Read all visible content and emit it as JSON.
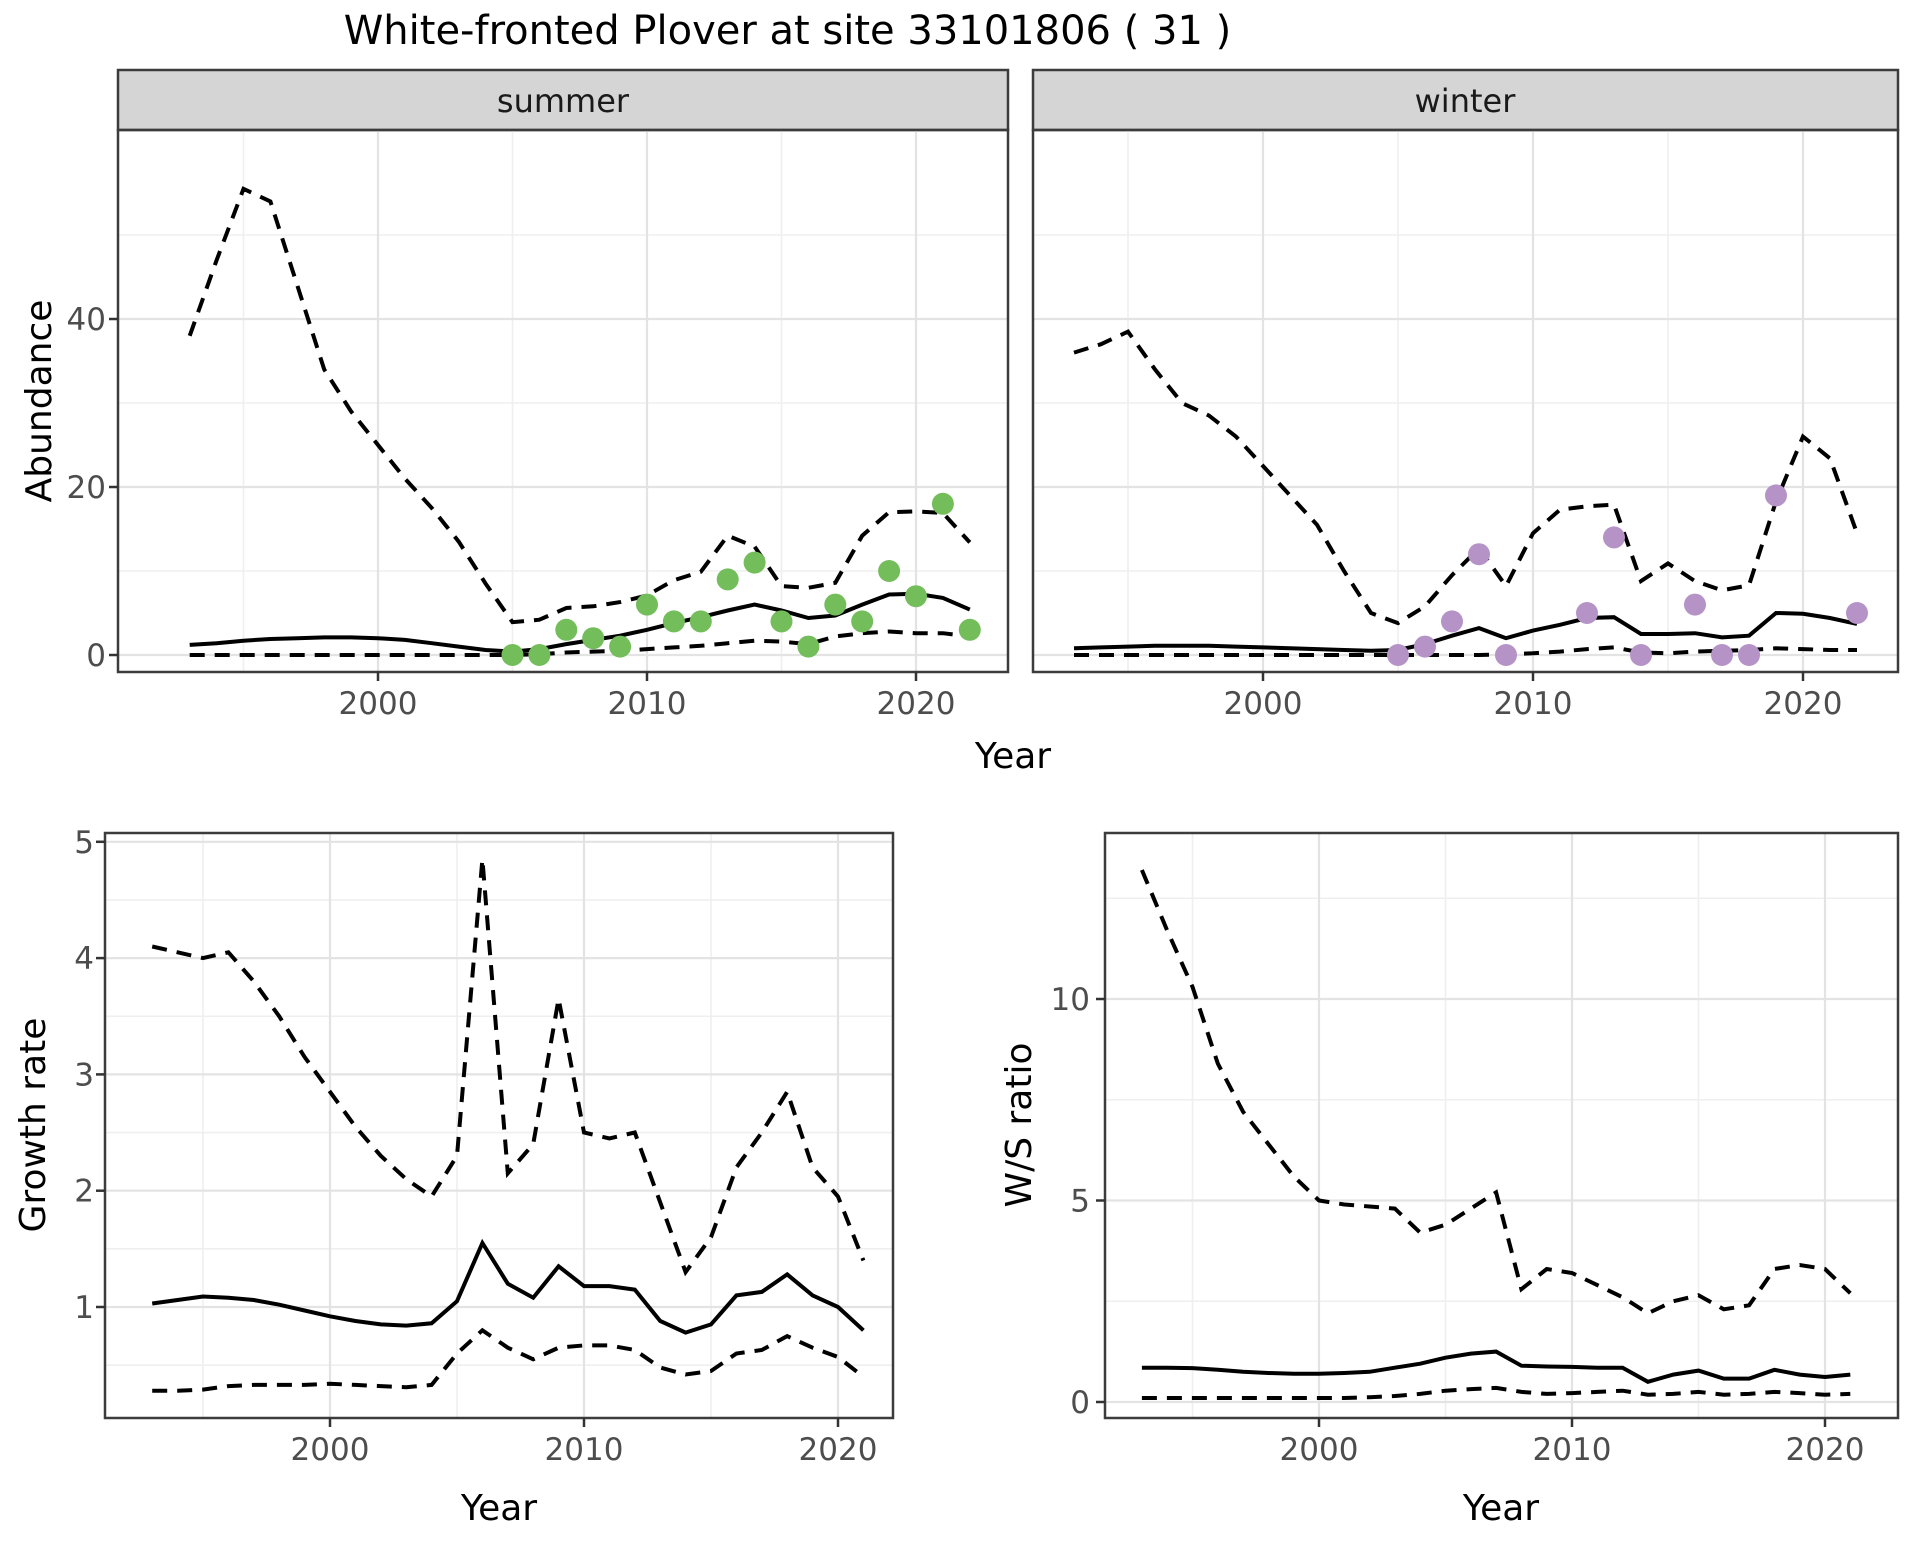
{
  "title": "White-fronted Plover at site 33101806 ( 31 )",
  "figure": {
    "x_axis_label": "Year",
    "facets": [
      "summer",
      "winter"
    ],
    "legend": "none",
    "line_styles": {
      "credible_interval": "dashed",
      "median_estimate": "solid"
    }
  },
  "colors": {
    "summer_points": "#73bd5b",
    "winter_points": "#b593c7",
    "line": "#000000",
    "strip_bg": "#d5d5d5",
    "panel_border": "#3c3c3c",
    "grid_major": "#e3e3e3",
    "grid_minor": "#efefef",
    "tick_text": "#4d4d4d",
    "tick_mark": "#333333"
  },
  "chart_data": [
    {
      "id": "abundance-summer",
      "type": "line",
      "facet_label": "summer",
      "xlabel": "Year",
      "ylabel": "Abundance",
      "x_ticks": [
        2000,
        2010,
        2020
      ],
      "x_minor": [
        1995,
        2005,
        2015
      ],
      "y_ticks": [
        0,
        20,
        40
      ],
      "y_minor": [
        10,
        30,
        50
      ],
      "xlim": [
        1990.4,
        2023.5
      ],
      "ylim": [
        -2,
        62.5
      ],
      "x": [
        1993,
        1994,
        1995,
        1996,
        1997,
        1998,
        1999,
        2000,
        2001,
        2002,
        2003,
        2004,
        2005,
        2006,
        2007,
        2008,
        2009,
        2010,
        2011,
        2012,
        2013,
        2014,
        2015,
        2016,
        2017,
        2018,
        2019,
        2020,
        2021,
        2022
      ],
      "series": [
        {
          "name": "upper-95ci",
          "style": "dashed",
          "values": [
            38,
            47,
            55.5,
            54,
            44,
            34,
            29,
            25,
            21,
            17.5,
            13.5,
            8.5,
            3.9,
            4.2,
            5.6,
            5.8,
            6.3,
            7.1,
            8.9,
            9.9,
            14.2,
            12.9,
            8.2,
            8.0,
            8.6,
            14.2,
            17.0,
            17.1,
            16.9,
            13.4
          ]
        },
        {
          "name": "median",
          "style": "solid",
          "values": [
            1.2,
            1.4,
            1.7,
            1.9,
            2.0,
            2.1,
            2.1,
            2.0,
            1.8,
            1.4,
            1.0,
            0.6,
            0.4,
            0.7,
            1.3,
            1.8,
            2.3,
            3.0,
            3.8,
            4.5,
            5.3,
            6.0,
            5.3,
            4.4,
            4.7,
            6.0,
            7.2,
            7.3,
            6.8,
            5.4
          ]
        },
        {
          "name": "lower-95ci",
          "style": "dashed",
          "values": [
            0,
            0,
            0,
            0,
            0,
            0,
            0,
            0,
            0,
            0,
            0,
            0,
            0,
            0.1,
            0.3,
            0.4,
            0.5,
            0.7,
            0.9,
            1.1,
            1.4,
            1.7,
            1.6,
            1.3,
            2.2,
            2.6,
            2.8,
            2.6,
            2.6,
            2.2
          ]
        }
      ],
      "points": {
        "name": "observed-counts-summer",
        "color_key": "summer_points",
        "x": [
          2005,
          2006,
          2007,
          2008,
          2009,
          2010,
          2011,
          2012,
          2013,
          2014,
          2015,
          2016,
          2017,
          2018,
          2019,
          2020,
          2021,
          2022
        ],
        "y": [
          0,
          0,
          3,
          2,
          1,
          6,
          4,
          4,
          9,
          11,
          4,
          1,
          6,
          4,
          10,
          7,
          18,
          3
        ]
      }
    },
    {
      "id": "abundance-winter",
      "type": "line",
      "facet_label": "winter",
      "xlabel": "Year",
      "ylabel": "Abundance",
      "x_ticks": [
        2000,
        2010,
        2020
      ],
      "x_minor": [
        1995,
        2005,
        2015
      ],
      "y_ticks": [
        0,
        20,
        40
      ],
      "y_minor": [
        10,
        30,
        50
      ],
      "xlim": [
        1991.5,
        2023.5
      ],
      "ylim": [
        -2,
        62.5
      ],
      "x": [
        1993,
        1994,
        1995,
        1996,
        1997,
        1998,
        1999,
        2000,
        2001,
        2002,
        2003,
        2004,
        2005,
        2006,
        2007,
        2008,
        2009,
        2010,
        2011,
        2012,
        2013,
        2014,
        2015,
        2016,
        2017,
        2018,
        2019,
        2020,
        2021,
        2022
      ],
      "series": [
        {
          "name": "upper-95ci",
          "style": "dashed",
          "values": [
            36,
            37,
            38.5,
            34,
            30,
            28.5,
            26,
            22.5,
            19,
            15.5,
            10,
            5,
            3.8,
            5.8,
            9.5,
            12.7,
            8.2,
            14.5,
            17.3,
            17.7,
            17.9,
            8.8,
            10.9,
            8.8,
            7.7,
            8.3,
            18.3,
            26,
            23.4,
            14.5
          ]
        },
        {
          "name": "median",
          "style": "solid",
          "values": [
            0.8,
            0.9,
            1.0,
            1.1,
            1.1,
            1.1,
            1.0,
            0.9,
            0.8,
            0.7,
            0.6,
            0.5,
            0.6,
            1.3,
            2.3,
            3.2,
            2.0,
            2.9,
            3.6,
            4.4,
            4.5,
            2.5,
            2.5,
            2.6,
            2.1,
            2.3,
            5.0,
            4.9,
            4.4,
            3.7
          ]
        },
        {
          "name": "lower-95ci",
          "style": "dashed",
          "values": [
            0,
            0,
            0,
            0,
            0,
            0,
            0,
            0,
            0,
            0,
            0,
            0,
            0,
            0,
            0,
            0,
            0.1,
            0.2,
            0.4,
            0.7,
            0.9,
            0.3,
            0.2,
            0.4,
            0.5,
            0.6,
            0.8,
            0.7,
            0.6,
            0.6
          ]
        }
      ],
      "points": {
        "name": "observed-counts-winter",
        "color_key": "winter_points",
        "x": [
          2005,
          2006,
          2007,
          2008,
          2009,
          2012,
          2013,
          2014,
          2016,
          2017,
          2018,
          2019,
          2022
        ],
        "y": [
          0,
          1,
          4,
          12,
          0,
          5,
          14,
          0,
          6,
          0,
          0,
          19,
          5
        ]
      }
    },
    {
      "id": "growth-rate",
      "type": "line",
      "facet_label": "",
      "xlabel": "Year",
      "ylabel": "Growth rate",
      "x_ticks": [
        2000,
        2010,
        2020
      ],
      "x_minor": [
        1995,
        2005,
        2015
      ],
      "y_ticks": [
        1,
        2,
        3,
        4,
        5
      ],
      "y_minor": [
        0.5,
        1.5,
        2.5,
        3.5,
        4.5
      ],
      "xlim": [
        1991.1,
        2022.2
      ],
      "ylim": [
        0.05,
        5.08
      ],
      "x": [
        1993,
        1994,
        1995,
        1996,
        1997,
        1998,
        1999,
        2000,
        2001,
        2002,
        2003,
        2004,
        2005,
        2006,
        2007,
        2008,
        2009,
        2010,
        2011,
        2012,
        2013,
        2014,
        2015,
        2016,
        2017,
        2018,
        2019,
        2020,
        2021
      ],
      "series": [
        {
          "name": "upper-95ci",
          "style": "dashed",
          "values": [
            4.1,
            4.05,
            4.0,
            4.05,
            3.8,
            3.5,
            3.15,
            2.85,
            2.55,
            2.3,
            2.1,
            1.95,
            2.3,
            4.85,
            2.15,
            2.4,
            3.65,
            2.5,
            2.45,
            2.5,
            1.9,
            1.3,
            1.6,
            2.2,
            2.5,
            2.85,
            2.2,
            1.95,
            1.4
          ]
        },
        {
          "name": "median",
          "style": "solid",
          "values": [
            1.03,
            1.06,
            1.09,
            1.08,
            1.06,
            1.02,
            0.97,
            0.92,
            0.88,
            0.85,
            0.84,
            0.86,
            1.05,
            1.55,
            1.2,
            1.08,
            1.35,
            1.18,
            1.18,
            1.15,
            0.88,
            0.78,
            0.85,
            1.1,
            1.13,
            1.28,
            1.1,
            1.0,
            0.8
          ]
        },
        {
          "name": "lower-95ci",
          "style": "dashed",
          "values": [
            0.28,
            0.28,
            0.29,
            0.32,
            0.33,
            0.33,
            0.33,
            0.34,
            0.33,
            0.32,
            0.31,
            0.33,
            0.6,
            0.8,
            0.65,
            0.55,
            0.65,
            0.67,
            0.67,
            0.63,
            0.48,
            0.42,
            0.45,
            0.6,
            0.63,
            0.75,
            0.65,
            0.57,
            0.4
          ]
        }
      ],
      "points": null
    },
    {
      "id": "ws-ratio",
      "type": "line",
      "facet_label": "",
      "xlabel": "Year",
      "ylabel": "W/S ratio",
      "x_ticks": [
        2000,
        2010,
        2020
      ],
      "x_minor": [
        1995,
        2005,
        2015
      ],
      "y_ticks": [
        0,
        5,
        10
      ],
      "y_minor": [
        2.5,
        7.5,
        12.5
      ],
      "xlim": [
        1991.5,
        2022.9
      ],
      "ylim": [
        -0.4,
        14.1
      ],
      "x": [
        1993,
        1994,
        1995,
        1996,
        1997,
        1998,
        1999,
        2000,
        2001,
        2002,
        2003,
        2004,
        2005,
        2006,
        2007,
        2008,
        2009,
        2010,
        2011,
        2012,
        2013,
        2014,
        2015,
        2016,
        2017,
        2018,
        2019,
        2020,
        2021
      ],
      "series": [
        {
          "name": "upper-95ci",
          "style": "dashed",
          "values": [
            13.2,
            11.7,
            10.3,
            8.4,
            7.2,
            6.4,
            5.6,
            5.0,
            4.9,
            4.85,
            4.8,
            4.2,
            4.4,
            4.8,
            5.2,
            2.8,
            3.3,
            3.2,
            2.9,
            2.6,
            2.2,
            2.5,
            2.65,
            2.3,
            2.4,
            3.3,
            3.4,
            3.3,
            2.7
          ]
        },
        {
          "name": "median",
          "style": "solid",
          "values": [
            0.85,
            0.85,
            0.84,
            0.8,
            0.75,
            0.72,
            0.7,
            0.7,
            0.72,
            0.75,
            0.85,
            0.95,
            1.1,
            1.2,
            1.25,
            0.9,
            0.88,
            0.87,
            0.85,
            0.85,
            0.5,
            0.68,
            0.78,
            0.58,
            0.58,
            0.8,
            0.68,
            0.62,
            0.68
          ]
        },
        {
          "name": "lower-95ci",
          "style": "dashed",
          "values": [
            0.1,
            0.1,
            0.1,
            0.1,
            0.1,
            0.1,
            0.1,
            0.1,
            0.1,
            0.12,
            0.15,
            0.2,
            0.28,
            0.32,
            0.35,
            0.25,
            0.2,
            0.22,
            0.25,
            0.28,
            0.18,
            0.2,
            0.25,
            0.18,
            0.2,
            0.25,
            0.22,
            0.18,
            0.2
          ]
        }
      ],
      "points": null
    }
  ]
}
